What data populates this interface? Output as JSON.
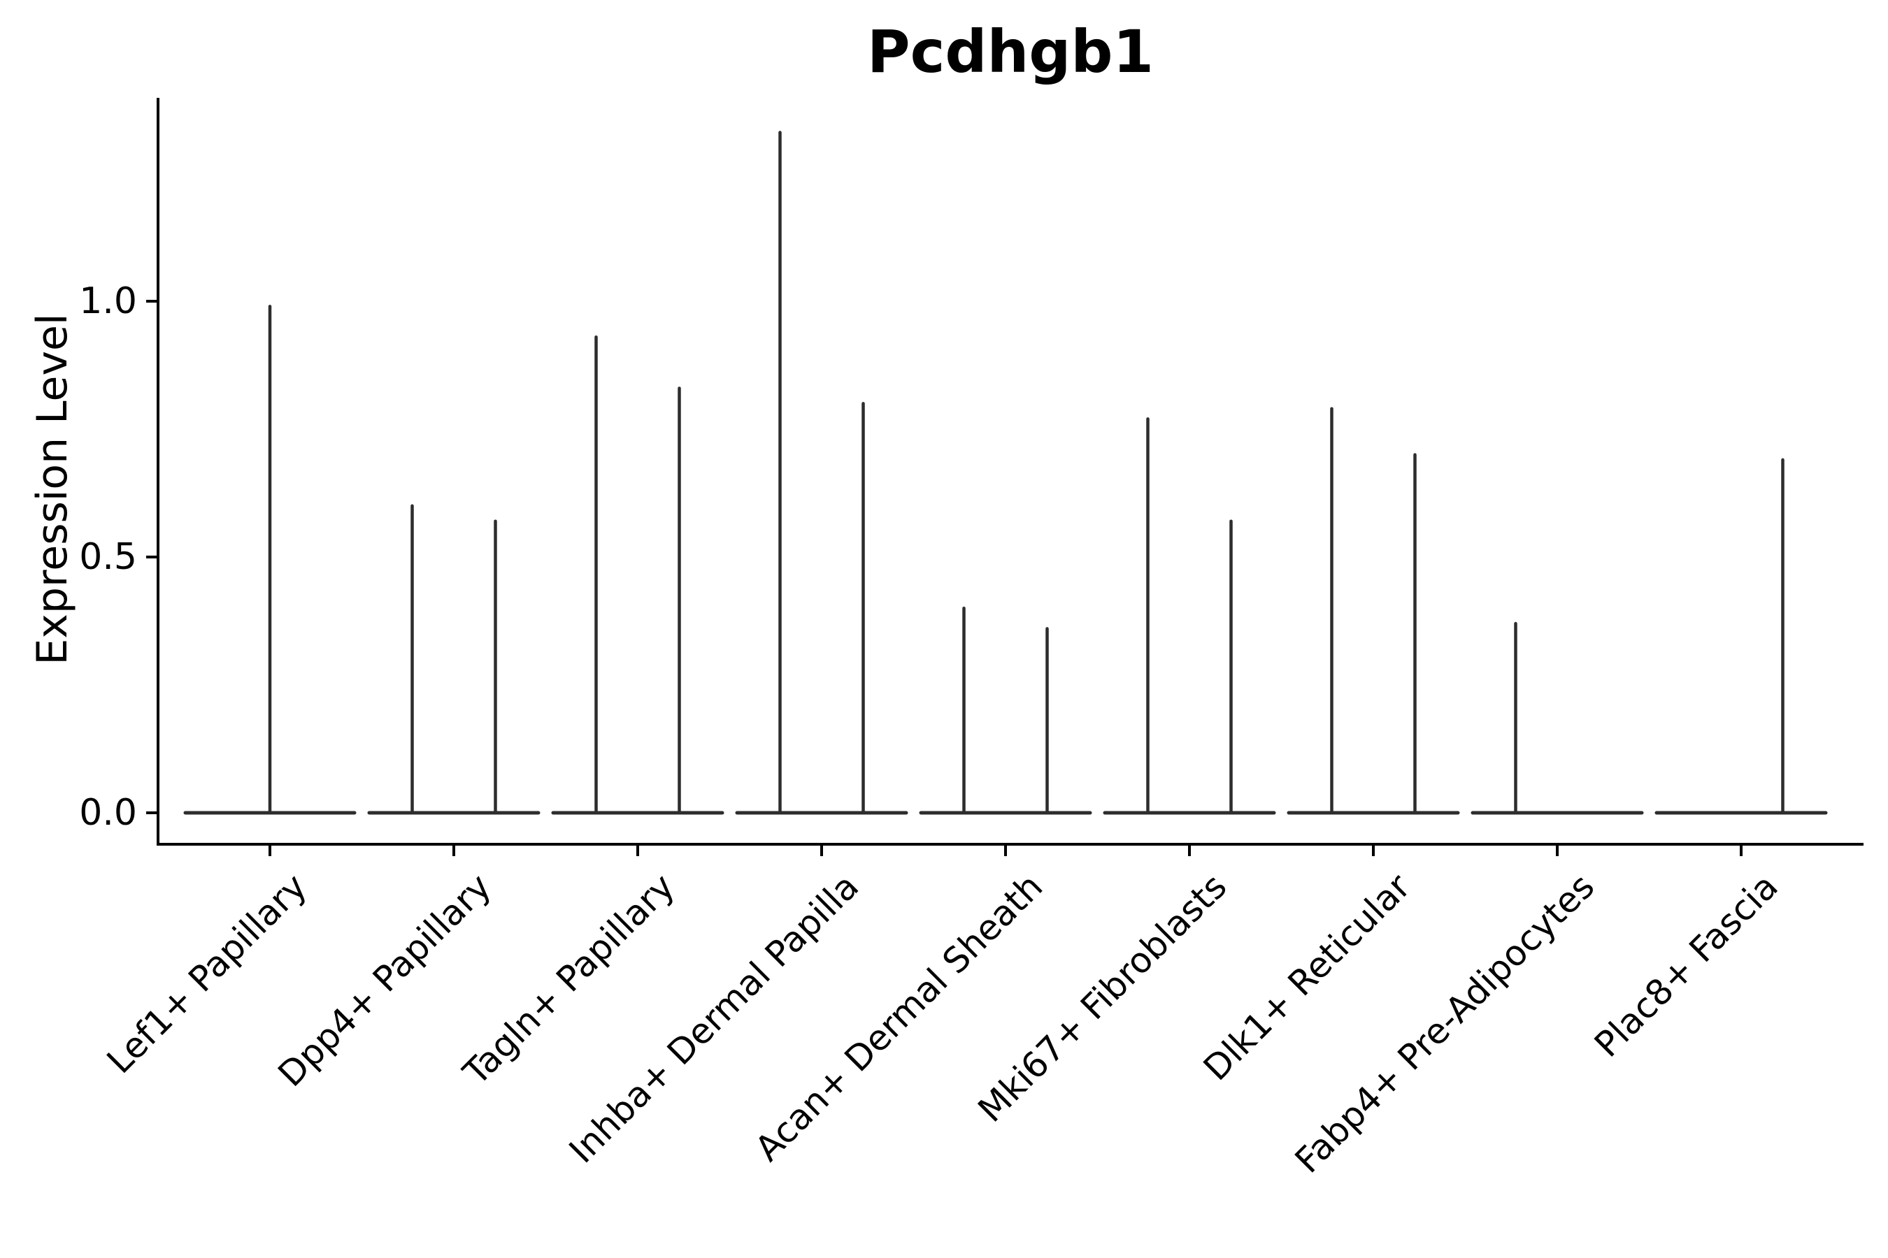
{
  "figure": {
    "background": "#ffffff"
  },
  "chart_data": {
    "type": "violin",
    "title": "Pcdhgb1",
    "ylabel": "Expression Level",
    "xlabel": "",
    "grid": false,
    "legend": null,
    "ylim": [
      -0.06,
      1.4
    ],
    "y_ticks": [
      {
        "label": "0.0",
        "value": 0.0
      },
      {
        "label": "0.5",
        "value": 0.5
      },
      {
        "label": "1.0",
        "value": 1.0
      }
    ],
    "axis_color": "#000000",
    "line_color": "#2d2d2d",
    "baseline_value": 0.0,
    "categories": [
      "Lef1+ Papillary",
      "Dpp4+ Papillary",
      "Tagln+ Papillary",
      "Inhba+ Dermal Papilla",
      "Acan+ Dermal Sheath",
      "Mki67+ Fibroblasts",
      "Dlk1+ Reticular",
      "Fabp4+ Pre-Adipocytes",
      "Plac8+ Fascia"
    ],
    "violins": [
      {
        "category": "Lef1+ Papillary",
        "spikes": [
          {
            "offset_slot": 0,
            "max": 0.99
          }
        ]
      },
      {
        "category": "Dpp4+ Papillary",
        "spikes": [
          {
            "offset_slot": -1,
            "max": 0.6
          },
          {
            "offset_slot": 1,
            "max": 0.57
          }
        ]
      },
      {
        "category": "Tagln+ Papillary",
        "spikes": [
          {
            "offset_slot": -1,
            "max": 0.93
          },
          {
            "offset_slot": 1,
            "max": 0.83
          }
        ]
      },
      {
        "category": "Inhba+ Dermal Papilla",
        "spikes": [
          {
            "offset_slot": -1,
            "max": 1.33
          },
          {
            "offset_slot": 1,
            "max": 0.8
          }
        ]
      },
      {
        "category": "Acan+ Dermal Sheath",
        "spikes": [
          {
            "offset_slot": -1,
            "max": 0.4
          },
          {
            "offset_slot": 1,
            "max": 0.36
          }
        ]
      },
      {
        "category": "Mki67+ Fibroblasts",
        "spikes": [
          {
            "offset_slot": -1,
            "max": 0.77
          },
          {
            "offset_slot": 1,
            "max": 0.57
          }
        ]
      },
      {
        "category": "Dlk1+ Reticular",
        "spikes": [
          {
            "offset_slot": -1,
            "max": 0.79
          },
          {
            "offset_slot": 1,
            "max": 0.7
          }
        ]
      },
      {
        "category": "Fabp4+ Pre-Adipocytes",
        "spikes": [
          {
            "offset_slot": -1,
            "max": 0.37
          }
        ]
      },
      {
        "category": "Plac8+ Fascia",
        "spikes": [
          {
            "offset_slot": 1,
            "max": 0.69
          }
        ]
      }
    ]
  }
}
